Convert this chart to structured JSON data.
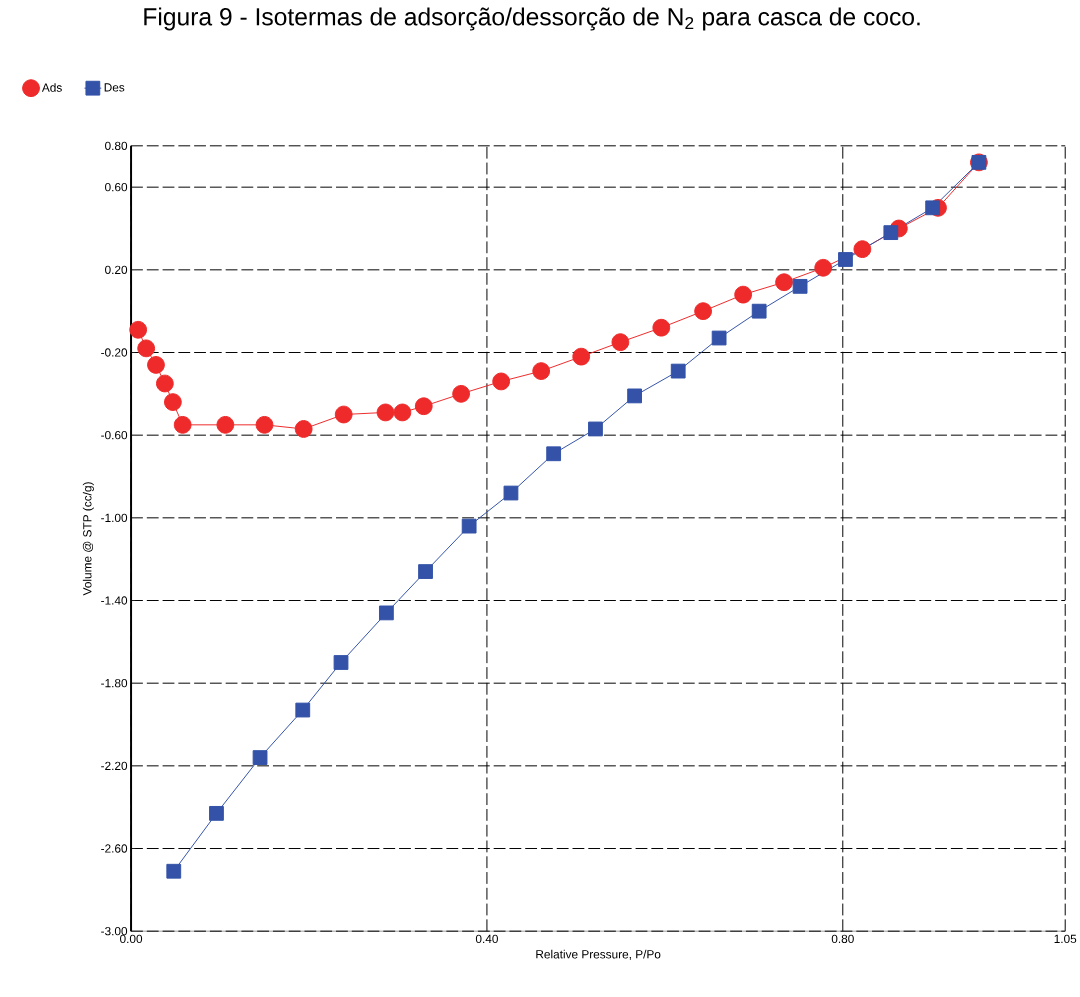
{
  "chart_data": {
    "type": "line",
    "title": "Figura 9 - Isotermas de adsorção/dessorção de N$_{2}$ para casca de coco.",
    "xlabel": "Relative Pressure, P/Po",
    "ylabel": "Volume @ STP (cc/g)",
    "xlim": [
      0,
      1.05
    ],
    "ylim": [
      -3.0,
      0.8
    ],
    "xticks": [
      {
        "value": 0,
        "label": "0.00"
      },
      {
        "value": 0.4,
        "label": "0.40"
      },
      {
        "value": 0.8,
        "label": "0.80"
      },
      {
        "value": 1.05,
        "label": "1.05"
      }
    ],
    "yticks": [
      {
        "value": 0.8,
        "label": "0.80"
      },
      {
        "value": 0.6,
        "label": "0.60"
      },
      {
        "value": 0.2,
        "label": "0.20"
      },
      {
        "value": -0.2,
        "label": "-0.20"
      },
      {
        "value": -0.6,
        "label": "-0.60"
      },
      {
        "value": -1.0,
        "label": "-1.00"
      },
      {
        "value": -1.4,
        "label": "-1.40"
      },
      {
        "value": -1.8,
        "label": "-1.80"
      },
      {
        "value": -2.2,
        "label": "-2.20"
      },
      {
        "value": -2.6,
        "label": "-2.60"
      },
      {
        "value": -3.0,
        "label": "-3.00"
      }
    ],
    "grid": true,
    "legend": "top left",
    "line_style": "solid",
    "series": [
      {
        "name": "Ads",
        "color": "#ee2a2a",
        "marker": "circle",
        "x": [
          0.008,
          0.017,
          0.028,
          0.038,
          0.047,
          0.058,
          0.106,
          0.15,
          0.194,
          0.239,
          0.286,
          0.305,
          0.329,
          0.371,
          0.416,
          0.461,
          0.506,
          0.55,
          0.596,
          0.643,
          0.688,
          0.734,
          0.778,
          0.822,
          0.863,
          0.907,
          0.953
        ],
        "values": [
          -0.09,
          -0.18,
          -0.26,
          -0.35,
          -0.44,
          -0.55,
          -0.55,
          -0.55,
          -0.57,
          -0.5,
          -0.49,
          -0.49,
          -0.46,
          -0.4,
          -0.34,
          -0.29,
          -0.22,
          -0.15,
          -0.08,
          0.0,
          0.08,
          0.14,
          0.21,
          0.3,
          0.4,
          0.5,
          0.72
        ]
      },
      {
        "name": "Des",
        "color": "#3352a8",
        "marker": "square",
        "x": [
          0.048,
          0.096,
          0.145,
          0.193,
          0.236,
          0.287,
          0.331,
          0.38,
          0.427,
          0.475,
          0.522,
          0.566,
          0.615,
          0.661,
          0.706,
          0.752,
          0.803,
          0.854,
          0.901,
          0.953
        ],
        "values": [
          -2.71,
          -2.43,
          -2.16,
          -1.93,
          -1.7,
          -1.46,
          -1.26,
          -1.04,
          -0.88,
          -0.69,
          -0.57,
          -0.41,
          -0.29,
          -0.13,
          0.0,
          0.12,
          0.25,
          0.38,
          0.5,
          0.72
        ]
      }
    ]
  }
}
